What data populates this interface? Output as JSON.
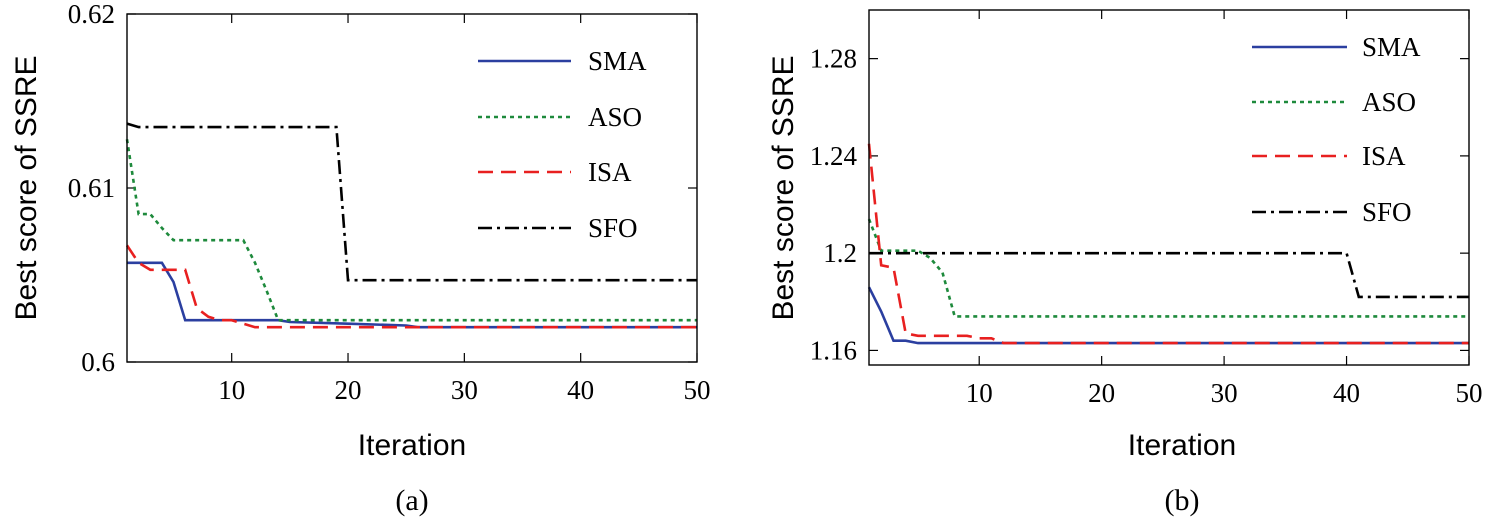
{
  "chart_data": [
    {
      "type": "line",
      "caption": "(a)",
      "xlabel": "Iteration",
      "ylabel": "Best score of SSRE",
      "xlim": [
        1,
        50
      ],
      "ylim": [
        0.6,
        0.62
      ],
      "xticks": [
        10,
        20,
        30,
        40,
        50
      ],
      "yticks": [
        0.6,
        0.61,
        0.62
      ],
      "ytick_labels": [
        "0.6",
        "0.61",
        "0.62"
      ],
      "legend_position": "top-right",
      "series": [
        {
          "name": "SMA",
          "color": "#2b3fa0",
          "dash": "solid",
          "x": [
            1,
            2,
            3,
            4,
            5,
            6,
            7,
            8,
            9,
            10,
            11,
            12,
            13,
            14,
            15,
            20,
            25,
            26,
            50
          ],
          "y": [
            0.6057,
            0.6057,
            0.6057,
            0.6057,
            0.6046,
            0.6024,
            0.6024,
            0.6024,
            0.6024,
            0.6024,
            0.6024,
            0.6024,
            0.6024,
            0.6024,
            0.6023,
            0.6022,
            0.6021,
            0.602,
            0.602
          ]
        },
        {
          "name": "ASO",
          "color": "#1e8a3c",
          "dash": "dotted",
          "x": [
            1,
            2,
            3,
            4,
            5,
            6,
            7,
            8,
            9,
            10,
            11,
            12,
            13,
            14,
            15,
            50
          ],
          "y": [
            0.6128,
            0.6085,
            0.6085,
            0.6077,
            0.607,
            0.607,
            0.607,
            0.607,
            0.607,
            0.607,
            0.607,
            0.6057,
            0.6041,
            0.6024,
            0.6024,
            0.6024
          ]
        },
        {
          "name": "ISA",
          "color": "#e82020",
          "dash": "dashed",
          "x": [
            1,
            2,
            3,
            4,
            5,
            6,
            7,
            8,
            9,
            10,
            11,
            12,
            13,
            50
          ],
          "y": [
            0.6067,
            0.6057,
            0.6053,
            0.6053,
            0.6053,
            0.6053,
            0.6031,
            0.6026,
            0.6024,
            0.6024,
            0.6022,
            0.602,
            0.602,
            0.602
          ]
        },
        {
          "name": "SFO",
          "color": "#000000",
          "dash": "dashdot",
          "x": [
            1,
            2,
            19,
            20,
            50
          ],
          "y": [
            0.6137,
            0.6135,
            0.6135,
            0.6047,
            0.6047
          ]
        }
      ]
    },
    {
      "type": "line",
      "caption": "(b)",
      "xlabel": "Iteration",
      "ylabel": "Best score of SSRE",
      "xlim": [
        1,
        50
      ],
      "ylim": [
        1.154,
        1.3
      ],
      "xticks": [
        10,
        20,
        30,
        40,
        50
      ],
      "yticks": [
        1.16,
        1.2,
        1.24,
        1.28
      ],
      "ytick_labels": [
        "1.16",
        "1.2",
        "1.24",
        "1.28"
      ],
      "legend_position": "top-right",
      "series": [
        {
          "name": "SMA",
          "color": "#2b3fa0",
          "dash": "solid",
          "x": [
            1,
            2,
            3,
            4,
            5,
            6,
            50
          ],
          "y": [
            1.186,
            1.176,
            1.164,
            1.164,
            1.163,
            1.163,
            1.163
          ]
        },
        {
          "name": "ASO",
          "color": "#1e8a3c",
          "dash": "dotted",
          "x": [
            1,
            2,
            3,
            4,
            5,
            6,
            7,
            8,
            9,
            50
          ],
          "y": [
            1.214,
            1.201,
            1.201,
            1.201,
            1.201,
            1.198,
            1.192,
            1.174,
            1.174,
            1.174
          ]
        },
        {
          "name": "ISA",
          "color": "#e82020",
          "dash": "dashed",
          "x": [
            1,
            2,
            3,
            4,
            5,
            9,
            10,
            11,
            12,
            50
          ],
          "y": [
            1.245,
            1.195,
            1.194,
            1.167,
            1.166,
            1.166,
            1.165,
            1.165,
            1.163,
            1.163
          ]
        },
        {
          "name": "SFO",
          "color": "#000000",
          "dash": "dashdot",
          "x": [
            1,
            40,
            41,
            50
          ],
          "y": [
            1.2,
            1.2,
            1.182,
            1.182
          ]
        }
      ]
    }
  ]
}
